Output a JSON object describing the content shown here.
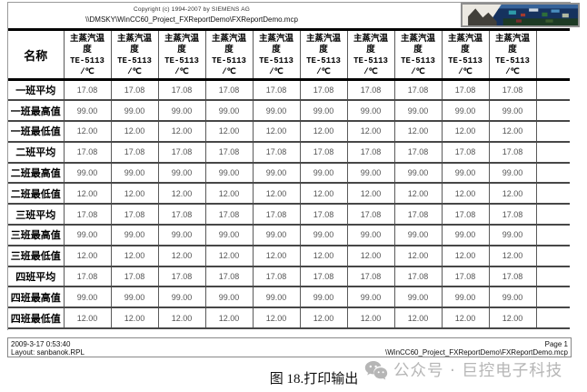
{
  "header": {
    "copyright": "Copyright (c) 1994-2007 by SIEMENS AG",
    "project_path": "\\\\DMSKY\\WinCC60_Project_FXReportDemo\\FXReportDemo.mcp"
  },
  "table": {
    "name_header": "名称",
    "value_column_count": 10,
    "column_header": {
      "title_lines": [
        "主蒸汽温",
        "度"
      ],
      "tag": "TE-5113",
      "unit": "/℃"
    },
    "rows": [
      {
        "label": "一班平均",
        "value": "17.08"
      },
      {
        "label": "一班最高值",
        "value": "99.00"
      },
      {
        "label": "一班最低值",
        "value": "12.00"
      },
      {
        "label": "二班平均",
        "value": "17.08"
      },
      {
        "label": "二班最高值",
        "value": "99.00"
      },
      {
        "label": "二班最低值",
        "value": "12.00"
      },
      {
        "label": "三班平均",
        "value": "17.08"
      },
      {
        "label": "三班最高值",
        "value": "99.00"
      },
      {
        "label": "三班最低值",
        "value": "12.00"
      },
      {
        "label": "四班平均",
        "value": "17.08"
      },
      {
        "label": "四班最高值",
        "value": "99.00"
      },
      {
        "label": "四班最低值",
        "value": "12.00"
      }
    ]
  },
  "footer": {
    "datetime": "2009-3-17 0:53:40",
    "layout": "Layout: sanbanok.RPL",
    "page_label": "Page 1",
    "document_path": "\\WinCC60_Project_FXReportDemo\\FXReportDemo.mcp"
  },
  "caption": {
    "text": "图 18.打印输出"
  },
  "watermark": {
    "text": "公众号 · 巨控电子科技"
  },
  "icons": {
    "watermark_icon": "wechat-icon",
    "header_image": "photo-thumbnail"
  },
  "colors": {
    "grid_line": "#474747",
    "value_text": "#555555",
    "watermark": "#b6b6b6"
  }
}
